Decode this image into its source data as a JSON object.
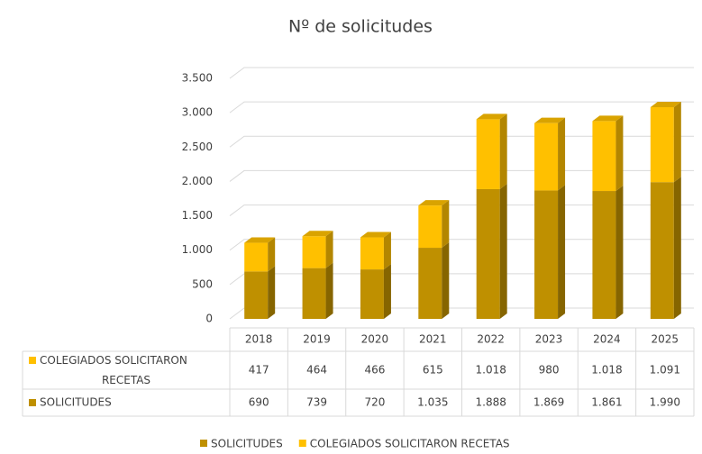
{
  "chart_data": {
    "type": "bar",
    "stacked": true,
    "title": "Nº de solicitudes",
    "categories": [
      "2018",
      "2019",
      "2020",
      "2021",
      "2022",
      "2023",
      "2024",
      "2025"
    ],
    "series": [
      {
        "name": "SOLICITUDES",
        "color": "#bf9000",
        "values": [
          690,
          739,
          720,
          1035,
          1888,
          1869,
          1861,
          1990
        ],
        "value_labels": [
          "690",
          "739",
          "720",
          "1.035",
          "1.888",
          "1.869",
          "1.861",
          "1.990"
        ]
      },
      {
        "name": "COLEGIADOS SOLICITARON RECETAS",
        "color": "#ffc000",
        "values": [
          417,
          464,
          466,
          615,
          1018,
          980,
          1018,
          1091
        ],
        "value_labels": [
          "417",
          "464",
          "466",
          "615",
          "1.018",
          "980",
          "1.018",
          "1.091"
        ]
      }
    ],
    "ylim": [
      0,
      3500
    ],
    "yticks": [
      0,
      500,
      {
        "value": 1000,
        "label": "1.000"
      },
      {
        "value": 1500,
        "label": "1.500"
      },
      {
        "value": 2000,
        "label": "2.000"
      },
      {
        "value": 2500,
        "label": "2.500"
      },
      {
        "value": 3000,
        "label": "3.000"
      },
      {
        "value": 3500,
        "label": "3.500"
      }
    ],
    "grid": true,
    "legend": "bottom"
  }
}
